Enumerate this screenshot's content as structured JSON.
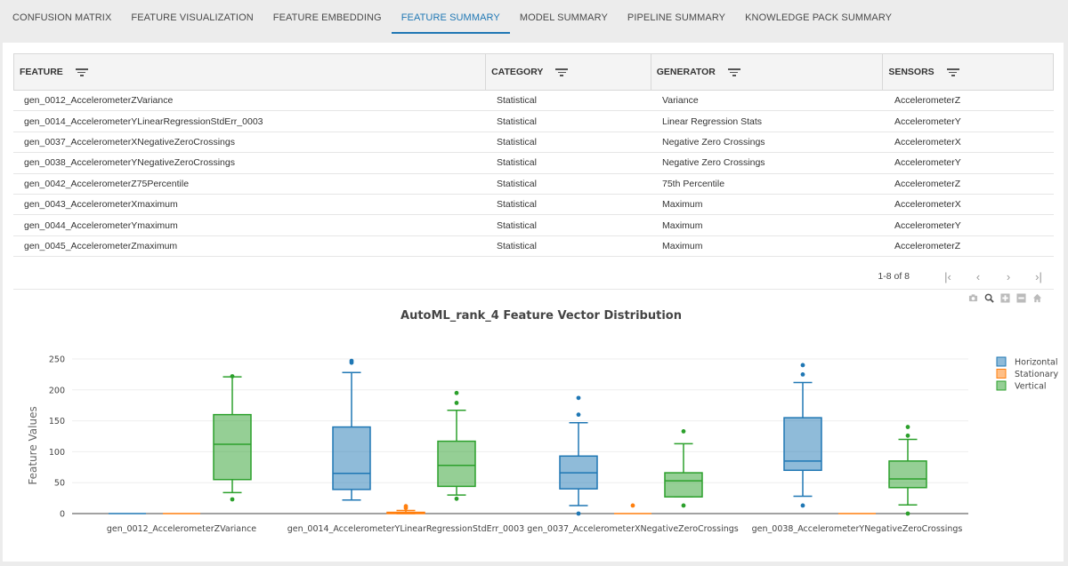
{
  "tabs": [
    {
      "label": "CONFUSION MATRIX"
    },
    {
      "label": "FEATURE VISUALIZATION"
    },
    {
      "label": "FEATURE EMBEDDING"
    },
    {
      "label": "FEATURE SUMMARY",
      "active": true
    },
    {
      "label": "MODEL SUMMARY"
    },
    {
      "label": "PIPELINE SUMMARY"
    },
    {
      "label": "KNOWLEDGE PACK SUMMARY"
    }
  ],
  "table": {
    "columns": [
      {
        "label": "FEATURE",
        "icon": "filter-icon"
      },
      {
        "label": "CATEGORY",
        "icon": "filter-icon"
      },
      {
        "label": "GENERATOR",
        "icon": "filter-icon"
      },
      {
        "label": "SENSORS",
        "icon": "filter-icon"
      }
    ],
    "rows": [
      [
        "gen_0012_AccelerometerZVariance",
        "Statistical",
        "Variance",
        "AccelerometerZ"
      ],
      [
        "gen_0014_AccelerometerYLinearRegressionStdErr_0003",
        "Statistical",
        "Linear Regression Stats",
        "AccelerometerY"
      ],
      [
        "gen_0037_AccelerometerXNegativeZeroCrossings",
        "Statistical",
        "Negative Zero Crossings",
        "AccelerometerX"
      ],
      [
        "gen_0038_AccelerometerYNegativeZeroCrossings",
        "Statistical",
        "Negative Zero Crossings",
        "AccelerometerY"
      ],
      [
        "gen_0042_AccelerometerZ75Percentile",
        "Statistical",
        "75th Percentile",
        "AccelerometerZ"
      ],
      [
        "gen_0043_AccelerometerXmaximum",
        "Statistical",
        "Maximum",
        "AccelerometerX"
      ],
      [
        "gen_0044_AccelerometerYmaximum",
        "Statistical",
        "Maximum",
        "AccelerometerY"
      ],
      [
        "gen_0045_AccelerometerZmaximum",
        "Statistical",
        "Maximum",
        "AccelerometerZ"
      ]
    ]
  },
  "pager": {
    "count": "1-8 of 8",
    "first": "|‹",
    "prev": "‹",
    "next": "›",
    "last": "›|"
  },
  "modebar": [
    "camera-icon",
    "zoom-icon",
    "zoom-in-icon",
    "zoom-out-icon",
    "home-icon"
  ],
  "chart_data": {
    "type": "box",
    "title": "AutoML_rank_4 Feature Vector Distribution",
    "xlabel": "",
    "ylabel": "Feature Values",
    "ylim": [
      -5,
      262
    ],
    "yticks": [
      0,
      50,
      100,
      150,
      200,
      250
    ],
    "grid": true,
    "legend_position": "top-right",
    "categories": [
      "gen_0012_AccelerometerZVariance",
      "gen_0014_AccelerometerYLinearRegressionStdErr_0003",
      "gen_0037_AccelerometerXNegativeZeroCrossings",
      "gen_0038_AccelerometerYNegativeZeroCrossings"
    ],
    "series": [
      {
        "name": "Horizontal",
        "color": "#1f77b4",
        "boxes": [
          {
            "min": 0,
            "q1": 0,
            "median": 0,
            "q3": 0,
            "max": 0,
            "outliers": []
          },
          {
            "min": 22,
            "q1": 39,
            "median": 65,
            "q3": 140,
            "max": 228,
            "outliers": [
              244,
              247
            ]
          },
          {
            "min": 13,
            "q1": 40,
            "median": 66,
            "q3": 93,
            "max": 147,
            "outliers": [
              160,
              187,
              0
            ]
          },
          {
            "min": 28,
            "q1": 70,
            "median": 85,
            "q3": 155,
            "max": 212,
            "outliers": [
              225,
              240,
              13
            ]
          }
        ]
      },
      {
        "name": "Stationary",
        "color": "#ff7f0e",
        "boxes": [
          {
            "min": 0,
            "q1": 0,
            "median": 0,
            "q3": 0,
            "max": 0,
            "outliers": []
          },
          {
            "min": 0,
            "q1": 0,
            "median": 1,
            "q3": 2,
            "max": 5,
            "outliers": [
              9,
              12
            ]
          },
          {
            "min": 0,
            "q1": 0,
            "median": 0,
            "q3": 0,
            "max": 0,
            "outliers": [
              13
            ]
          },
          {
            "min": 0,
            "q1": 0,
            "median": 0,
            "q3": 0,
            "max": 0,
            "outliers": []
          }
        ]
      },
      {
        "name": "Vertical",
        "color": "#2ca02c",
        "boxes": [
          {
            "min": 34,
            "q1": 55,
            "median": 112,
            "q3": 160,
            "max": 221,
            "outliers": [
              222,
              23
            ]
          },
          {
            "min": 30,
            "q1": 44,
            "median": 78,
            "q3": 117,
            "max": 167,
            "outliers": [
              179,
              195,
              24
            ]
          },
          {
            "min": 27,
            "q1": 27,
            "median": 53,
            "q3": 66,
            "max": 113,
            "outliers": [
              133,
              13
            ]
          },
          {
            "min": 14,
            "q1": 42,
            "median": 56,
            "q3": 85,
            "max": 120,
            "outliers": [
              126,
              140,
              0
            ]
          }
        ]
      }
    ]
  }
}
